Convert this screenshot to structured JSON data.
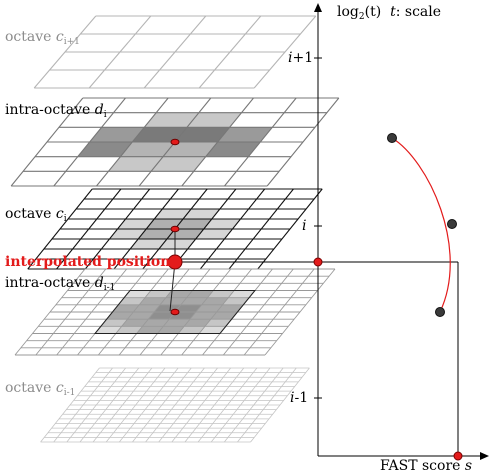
{
  "axes": {
    "y_label_prefix": "log",
    "y_label_log_base": "2",
    "y_label_arg": "(t)",
    "y_label_t": "t",
    "y_label_suffix": ": scale",
    "x_label_text": "FAST score",
    "x_label_var": "s",
    "tick_upper_base": "i",
    "tick_upper_rest": "+1",
    "tick_mid": "i",
    "tick_lower_base": "i",
    "tick_lower_rest": "-1"
  },
  "layers": {
    "octave_top": {
      "text": "octave",
      "var": "c",
      "sub": "i+1"
    },
    "intra_top": {
      "text": "intra-octave",
      "var": "d",
      "sub": "i"
    },
    "octave_mid": {
      "text": "octave",
      "var": "c",
      "sub": "i"
    },
    "interp": {
      "text": "interpolated position"
    },
    "intra_low": {
      "text": "intra-octave",
      "var": "d",
      "sub": "i-1"
    },
    "octave_low": {
      "text": "octave",
      "var": "c",
      "sub": "i-1"
    }
  },
  "colors": {
    "red": "#e31b1b",
    "dark_point": "#3a3a3a",
    "gray_label": "#8c8c8c"
  }
}
